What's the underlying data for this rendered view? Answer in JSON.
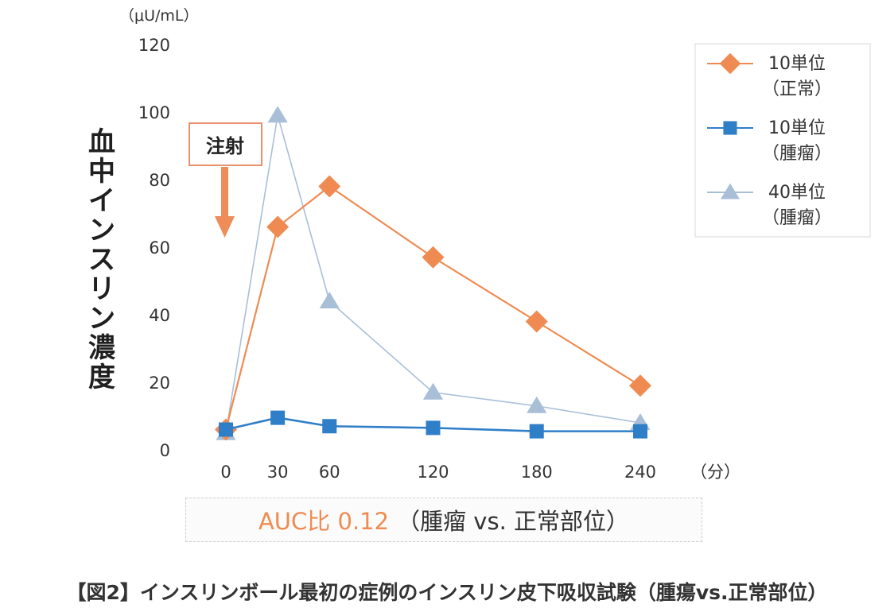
{
  "chart_data": {
    "type": "line",
    "title": "",
    "ylabel": "血中インスリン濃度",
    "yunit": "（μU/mL）",
    "xunit": "（分）",
    "x": [
      0,
      30,
      60,
      120,
      180,
      240
    ],
    "x_tick_labels": [
      "0",
      "30",
      "60",
      "120",
      "180",
      "240"
    ],
    "y_tick_labels": [
      "0",
      "20",
      "40",
      "60",
      "80",
      "100",
      "120"
    ],
    "ylim": [
      0,
      120
    ],
    "grid": false,
    "legend_position": "top-right",
    "series": [
      {
        "name": "10単位",
        "name_sub": "（正常）",
        "marker": "diamond",
        "color": "#ef8b52",
        "values": [
          6,
          66,
          78,
          57,
          38,
          19
        ]
      },
      {
        "name": "10単位",
        "name_sub": "（腫瘤）",
        "marker": "square",
        "color": "#2f7fc8",
        "values": [
          6,
          9.5,
          7,
          6.5,
          5.5,
          5.5
        ]
      },
      {
        "name": "40単位",
        "name_sub": "（腫瘤）",
        "marker": "triangle",
        "color": "#a9bfd8",
        "values": [
          5,
          99,
          44,
          17,
          13,
          8
        ]
      }
    ],
    "annotation": {
      "text": "注射"
    }
  },
  "auc": {
    "label_orange": "AUC比 0.12",
    "label_dark": "（腫瘤 vs. 正常部位）"
  },
  "caption": "【図2】インスリンボール最初の症例のインスリン皮下吸収試験（腫瘍vs.正常部位）"
}
